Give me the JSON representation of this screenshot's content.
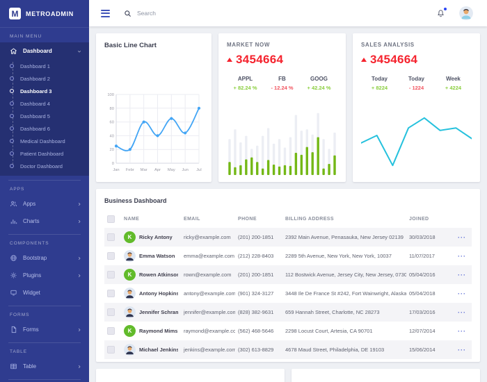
{
  "topbar": {
    "search_placeholder": "Search"
  },
  "sidebar": {
    "logo_letter": "M",
    "logo_text": "METROADMIN",
    "sections": [
      {
        "label": "MAIN MENU",
        "items": [
          {
            "label": "Dashboard",
            "icon": "home",
            "chevron": "down",
            "expanded": true,
            "submenu": [
              {
                "label": "Dashboard 1"
              },
              {
                "label": "Dashboard 2"
              },
              {
                "label": "Dashboard 3",
                "active": true
              },
              {
                "label": "Dashboard 4"
              },
              {
                "label": "Dashboard 5"
              },
              {
                "label": "Dashboard 6"
              },
              {
                "label": "Medical Dashboard"
              },
              {
                "label": "Patient Dashboard"
              },
              {
                "label": "Doctor Dashboard"
              }
            ]
          }
        ]
      },
      {
        "label": "APPS",
        "items": [
          {
            "label": "Apps",
            "icon": "users",
            "chevron": "right"
          },
          {
            "label": "Charts",
            "icon": "bar-chart",
            "chevron": "right"
          }
        ]
      },
      {
        "label": "COMPONENTS",
        "items": [
          {
            "label": "Bootstrap",
            "icon": "globe",
            "chevron": "right"
          },
          {
            "label": "Plugins",
            "icon": "gear",
            "chevron": "right"
          },
          {
            "label": "Widget",
            "icon": "widget"
          }
        ]
      },
      {
        "label": "FORMS",
        "items": [
          {
            "label": "Forms",
            "icon": "file",
            "chevron": "right"
          }
        ]
      },
      {
        "label": "TABLE",
        "items": [
          {
            "label": "Table",
            "icon": "table",
            "chevron": "right"
          }
        ]
      }
    ]
  },
  "cards": {
    "basic_line": {
      "title": "Basic Line Chart"
    },
    "market": {
      "title": "MARKET NOW",
      "value": "3454664",
      "direction": "up",
      "stats": [
        {
          "label": "APPL",
          "value": "+ 82.24 %",
          "trend": "up"
        },
        {
          "label": "FB",
          "value": "- 12.24 %",
          "trend": "down"
        },
        {
          "label": "GOOG",
          "value": "+ 42.24 %",
          "trend": "up"
        }
      ]
    },
    "sales": {
      "title": "SALES ANALYSIS",
      "value": "3454664",
      "direction": "up",
      "stats": [
        {
          "label": "Today",
          "value": "+ 8224",
          "trend": "up"
        },
        {
          "label": "Today",
          "value": "- 1224",
          "trend": "down"
        },
        {
          "label": "Week",
          "value": "+ 4224",
          "trend": "up"
        }
      ]
    }
  },
  "chart_data": [
    {
      "id": "basic_line",
      "type": "line",
      "title": "Basic Line Chart",
      "categories": [
        "Jan",
        "Febr",
        "Mar",
        "Apr",
        "May",
        "Jun",
        "Jul"
      ],
      "values": [
        25,
        20,
        60,
        40,
        65,
        44,
        80
      ],
      "ylim": [
        0,
        100
      ],
      "yticks": [
        0,
        20,
        40,
        60,
        80,
        100
      ],
      "grid": true,
      "color": "#42a5f5"
    },
    {
      "id": "market_bars",
      "type": "bar",
      "values": [
        20,
        12,
        15,
        24,
        27,
        20,
        10,
        23,
        16,
        13,
        15,
        14,
        34,
        31,
        43,
        35,
        58,
        10,
        17,
        30
      ],
      "track": [
        55,
        70,
        50,
        60,
        40,
        45,
        60,
        72,
        48,
        55,
        42,
        58,
        92,
        68,
        70,
        62,
        95,
        55,
        40,
        65
      ],
      "ylim": [
        0,
        100
      ],
      "color": "#74b816",
      "track_color": "#eceef4"
    },
    {
      "id": "sales_line",
      "type": "line",
      "values": [
        48,
        60,
        12,
        72,
        88,
        68,
        72,
        55
      ],
      "ylim": [
        0,
        100
      ],
      "grid": false,
      "color": "#25c1dd"
    }
  ],
  "table": {
    "title": "Business Dashboard",
    "columns": [
      "NAME",
      "EMAIL",
      "PHONE",
      "BILLING ADDRESS",
      "JOINED"
    ],
    "row_action": "···",
    "avatar_initial_color": "#62bb2b",
    "rows": [
      {
        "name": "Ricky Antony",
        "avatar": {
          "type": "initial",
          "text": "K"
        },
        "email": "ricky@example.com",
        "phone": "(201) 200-1851",
        "address": "2392 Main Avenue, Penasauka, New Jersey 02139",
        "joined": "30/03/2018"
      },
      {
        "name": "Emma Watson",
        "avatar": {
          "type": "photo"
        },
        "email": "emma@example.com",
        "phone": "(212) 228-8403",
        "address": "2289 5th Avenue, New York, New York, 10037",
        "joined": "11/07/2017"
      },
      {
        "name": "Rowen Atkinson",
        "avatar": {
          "type": "initial",
          "text": "K"
        },
        "email": "rown@example.com",
        "phone": "(201) 200-1851",
        "address": "112 Bostwick Avenue, Jersey City, New Jersey, 0730",
        "joined": "05/04/2016"
      },
      {
        "name": "Antony Hopkins",
        "avatar": {
          "type": "photo"
        },
        "email": "antony@example.com",
        "phone": "(901) 324-3127",
        "address": "3448 Ile De France St #242, Fort Wainwright, Alaska, 99703",
        "joined": "05/04/2018"
      },
      {
        "name": "Jennifer Schramm",
        "avatar": {
          "type": "photo"
        },
        "email": "jennifer@example.com",
        "phone": "(828) 382-9631",
        "address": "659 Hannah Street, Charlotte, NC 28273",
        "joined": "17/03/2016"
      },
      {
        "name": "Raymond Mims",
        "avatar": {
          "type": "initial",
          "text": "K"
        },
        "email": "raymond@example.com",
        "phone": "(562) 468-5646",
        "address": "2298 Locust Court, Artesia, CA 90701",
        "joined": "12/07/2014"
      },
      {
        "name": "Michael Jenkins",
        "avatar": {
          "type": "photo"
        },
        "email": "jenkins@example.com",
        "phone": "(302) 613-8829",
        "address": "4678 Maud Street, Philadelphia, DE 19103",
        "joined": "15/06/2014"
      }
    ]
  },
  "colors": {
    "sidebar": "#2f3c8f",
    "sidebar_panel": "#28327f",
    "accent": "#4053b8",
    "red": "#f5232e",
    "green_text": "#8ace3e",
    "red_text": "#f2545f",
    "bar_green": "#74b816",
    "line_blue": "#42a5f5",
    "line_cyan": "#25c1dd"
  }
}
